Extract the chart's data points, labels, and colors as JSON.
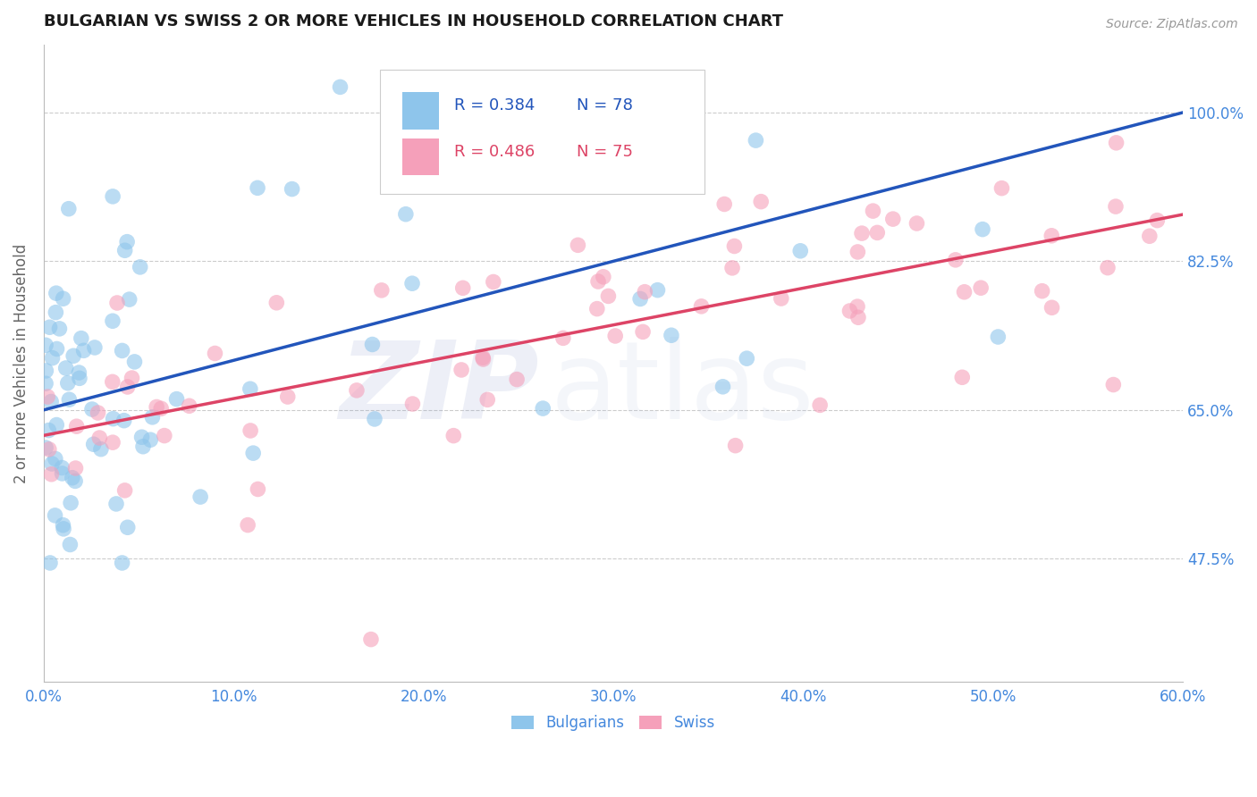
{
  "title": "BULGARIAN VS SWISS 2 OR MORE VEHICLES IN HOUSEHOLD CORRELATION CHART",
  "source": "Source: ZipAtlas.com",
  "ylabel": "2 or more Vehicles in Household",
  "xmin": 0.0,
  "xmax": 60.0,
  "ymin": 33.0,
  "ymax": 108.0,
  "yticks": [
    47.5,
    65.0,
    82.5,
    100.0
  ],
  "xticks": [
    0.0,
    10.0,
    20.0,
    30.0,
    40.0,
    50.0,
    60.0
  ],
  "legend_blue_r": "R = 0.384",
  "legend_blue_n": "N = 78",
  "legend_pink_r": "R = 0.486",
  "legend_pink_n": "N = 75",
  "blue_color": "#8EC5EB",
  "pink_color": "#F5A0BA",
  "blue_line_color": "#2255BB",
  "pink_line_color": "#DD4466",
  "axis_label_color": "#4488DD",
  "title_color": "#1A1A1A",
  "grid_color": "#CCCCCC",
  "blue_line_x0": 0.0,
  "blue_line_y0": 65.0,
  "blue_line_x1": 60.0,
  "blue_line_y1": 100.0,
  "pink_line_x0": 0.0,
  "pink_line_y0": 62.0,
  "pink_line_x1": 60.0,
  "pink_line_y1": 88.0
}
